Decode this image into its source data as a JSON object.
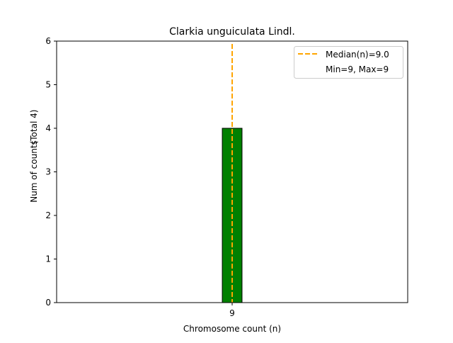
{
  "chart_data": {
    "type": "bar",
    "title": "Clarkia unguiculata Lindl.",
    "xlabel": "Chromosome count (n)",
    "ylabel": "Num of counts",
    "ylabel_extra": "(Total 4)",
    "categories": [
      "9"
    ],
    "x": [
      9
    ],
    "values": [
      4
    ],
    "bar_color": "#008000",
    "bar_width": 0.225,
    "xlim": [
      7,
      11
    ],
    "ylim": [
      0,
      6
    ],
    "yticks": [
      0,
      1,
      2,
      3,
      4,
      5,
      6
    ],
    "xticks": [
      9
    ],
    "grid": false,
    "median_line": {
      "x": 9.0,
      "color": "#FFA500",
      "style": "dashed"
    },
    "legend": {
      "placement": "top-right",
      "entries": [
        "Median(n)=9.0",
        "Min=9, Max=9"
      ]
    }
  }
}
